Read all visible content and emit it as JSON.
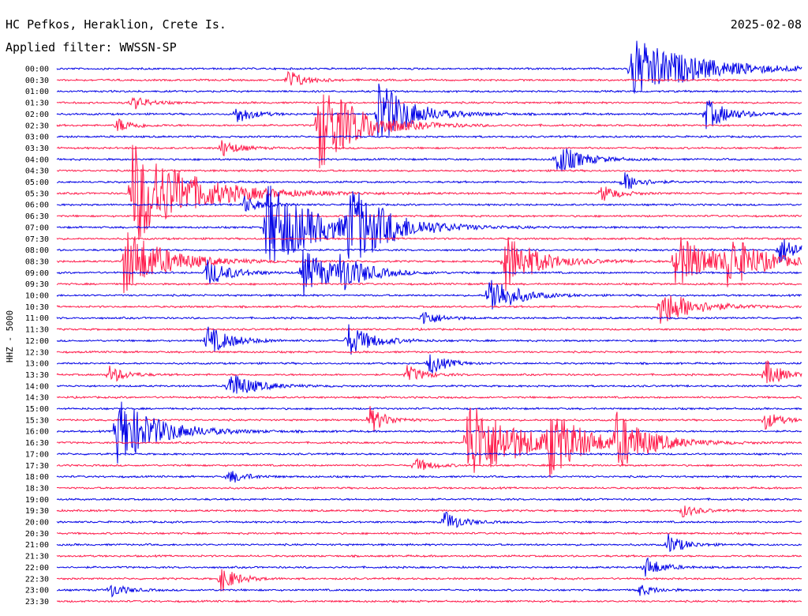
{
  "header": {
    "station": "HC Pefkos, Heraklion, Crete Is.",
    "date": "2025-02-08",
    "filter": "Applied filter: WWSSN-SP"
  },
  "chart_data": {
    "type": "line",
    "title": "HC Pefkos, Heraklion, Crete Is.",
    "subtitle": "Applied filter: WWSSN-SP",
    "ylabel": "HHZ - 5000",
    "time_labels": [
      "00:00",
      "00:30",
      "01:00",
      "01:30",
      "02:00",
      "02:30",
      "03:00",
      "03:30",
      "04:00",
      "04:30",
      "05:00",
      "05:30",
      "06:00",
      "06:30",
      "07:00",
      "07:30",
      "08:00",
      "08:30",
      "09:00",
      "09:30",
      "10:00",
      "10:30",
      "11:00",
      "11:30",
      "12:00",
      "12:30",
      "13:00",
      "13:30",
      "14:00",
      "14:30",
      "15:00",
      "15:30",
      "16:00",
      "16:30",
      "17:00",
      "17:30",
      "18:00",
      "18:30",
      "19:00",
      "19:30",
      "20:00",
      "20:30",
      "21:00",
      "21:30",
      "22:00",
      "22:30",
      "23:00",
      "23:30"
    ],
    "line_colors": [
      "#0000e6",
      "#ff1a4a"
    ],
    "events": [
      {
        "trace": 1,
        "x": 0.31,
        "amp": 14,
        "dur": 0.02,
        "color": 1
      },
      {
        "trace": 3,
        "x": 0.1,
        "amp": 10,
        "dur": 0.02
      },
      {
        "trace": 4,
        "x": 0.24,
        "amp": 13,
        "dur": 0.02
      },
      {
        "trace": 5,
        "x": 0.08,
        "amp": 10,
        "dur": 0.02
      },
      {
        "trace": 4,
        "x": 0.87,
        "amp": 20,
        "dur": 0.03
      },
      {
        "trace": 0,
        "x": 0.77,
        "amp": 40,
        "dur": 0.08,
        "color": 1
      },
      {
        "trace": 5,
        "x": 0.35,
        "amp": 60,
        "dur": 0.05
      },
      {
        "trace": 4,
        "x": 0.43,
        "amp": 45,
        "dur": 0.04
      },
      {
        "trace": 7,
        "x": 0.22,
        "amp": 12,
        "dur": 0.02
      },
      {
        "trace": 8,
        "x": 0.67,
        "amp": 22,
        "dur": 0.03
      },
      {
        "trace": 10,
        "x": 0.76,
        "amp": 14,
        "dur": 0.02
      },
      {
        "trace": 11,
        "x": 0.73,
        "amp": 12,
        "dur": 0.02,
        "color": 1
      },
      {
        "trace": 12,
        "x": 0.25,
        "amp": 12,
        "dur": 0.02
      },
      {
        "trace": 14,
        "x": 0.28,
        "amp": 60,
        "dur": 0.06,
        "color": 1
      },
      {
        "trace": 11,
        "x": 0.1,
        "amp": 70,
        "dur": 0.07
      },
      {
        "trace": 14,
        "x": 0.39,
        "amp": 50,
        "dur": 0.05
      },
      {
        "trace": 17,
        "x": 0.09,
        "amp": 45,
        "dur": 0.05
      },
      {
        "trace": 17,
        "x": 0.6,
        "amp": 40,
        "dur": 0.04
      },
      {
        "trace": 17,
        "x": 0.83,
        "amp": 35,
        "dur": 0.05
      },
      {
        "trace": 17,
        "x": 0.9,
        "amp": 30,
        "dur": 0.04,
        "color": 1
      },
      {
        "trace": 16,
        "x": 0.97,
        "amp": 18,
        "dur": 0.03
      },
      {
        "trace": 18,
        "x": 0.2,
        "amp": 18,
        "dur": 0.03,
        "color": 1
      },
      {
        "trace": 18,
        "x": 0.33,
        "amp": 30,
        "dur": 0.04,
        "color": 1
      },
      {
        "trace": 18,
        "x": 0.38,
        "amp": 20,
        "dur": 0.03
      },
      {
        "trace": 20,
        "x": 0.58,
        "amp": 30,
        "dur": 0.03
      },
      {
        "trace": 21,
        "x": 0.81,
        "amp": 25,
        "dur": 0.04
      },
      {
        "trace": 22,
        "x": 0.49,
        "amp": 12,
        "dur": 0.02
      },
      {
        "trace": 24,
        "x": 0.2,
        "amp": 20,
        "dur": 0.03,
        "color": 1
      },
      {
        "trace": 24,
        "x": 0.39,
        "amp": 22,
        "dur": 0.03,
        "color": 1
      },
      {
        "trace": 26,
        "x": 0.5,
        "amp": 15,
        "dur": 0.02
      },
      {
        "trace": 27,
        "x": 0.07,
        "amp": 12,
        "dur": 0.02,
        "color": 1
      },
      {
        "trace": 27,
        "x": 0.47,
        "amp": 12,
        "dur": 0.02,
        "color": 1
      },
      {
        "trace": 27,
        "x": 0.95,
        "amp": 20,
        "dur": 0.02,
        "color": 1
      },
      {
        "trace": 28,
        "x": 0.23,
        "amp": 20,
        "dur": 0.03
      },
      {
        "trace": 32,
        "x": 0.08,
        "amp": 45,
        "dur": 0.05,
        "color": 1
      },
      {
        "trace": 31,
        "x": 0.42,
        "amp": 18,
        "dur": 0.02
      },
      {
        "trace": 33,
        "x": 0.55,
        "amp": 60,
        "dur": 0.06
      },
      {
        "trace": 33,
        "x": 0.66,
        "amp": 40,
        "dur": 0.04
      },
      {
        "trace": 33,
        "x": 0.75,
        "amp": 35,
        "dur": 0.04,
        "color": 1
      },
      {
        "trace": 31,
        "x": 0.95,
        "amp": 12,
        "dur": 0.02,
        "color": 1
      },
      {
        "trace": 36,
        "x": 0.23,
        "amp": 10,
        "dur": 0.02
      },
      {
        "trace": 35,
        "x": 0.48,
        "amp": 10,
        "dur": 0.02,
        "color": 1
      },
      {
        "trace": 39,
        "x": 0.84,
        "amp": 8,
        "dur": 0.02
      },
      {
        "trace": 40,
        "x": 0.52,
        "amp": 15,
        "dur": 0.02
      },
      {
        "trace": 42,
        "x": 0.82,
        "amp": 14,
        "dur": 0.02
      },
      {
        "trace": 44,
        "x": 0.79,
        "amp": 14,
        "dur": 0.02
      },
      {
        "trace": 45,
        "x": 0.22,
        "amp": 18,
        "dur": 0.02
      },
      {
        "trace": 46,
        "x": 0.07,
        "amp": 10,
        "dur": 0.02
      },
      {
        "trace": 46,
        "x": 0.78,
        "amp": 8,
        "dur": 0.02
      }
    ]
  }
}
